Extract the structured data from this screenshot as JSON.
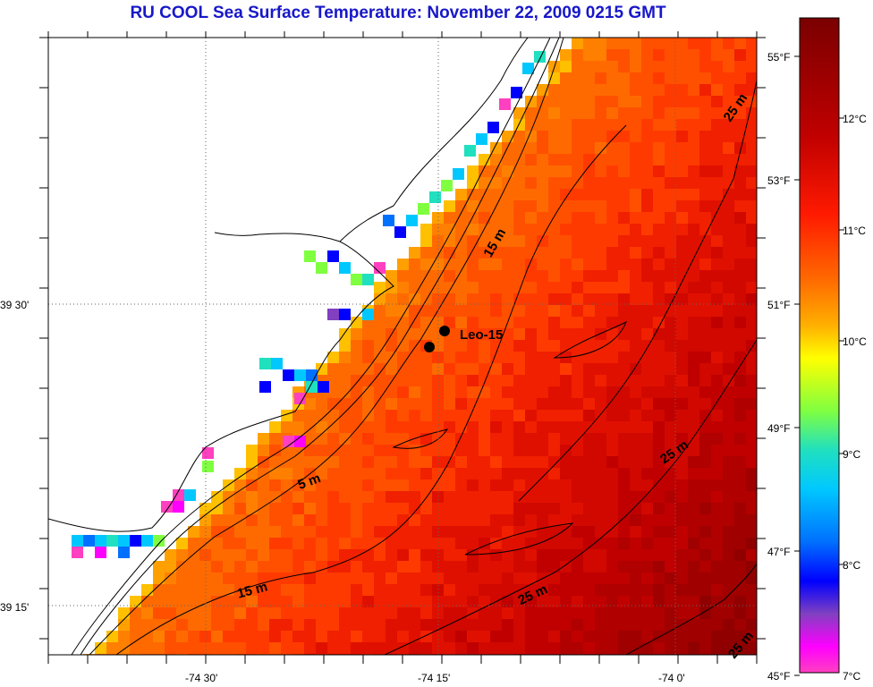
{
  "title": "RU COOL  Sea Surface Temperature:  November 22, 2009 0215 GMT",
  "lat_labels": [
    {
      "text": "39 30'",
      "lat": 39.5
    },
    {
      "text": "39 15'",
      "lat": 39.25
    }
  ],
  "lon_labels": [
    {
      "text": "-74 30'",
      "lon": -74.5
    },
    {
      "text": "-74 15'",
      "lon": -74.25
    },
    {
      "text": "-74 0'",
      "lon": -74.0
    }
  ],
  "colorbar": {
    "fahrenheit_labels": [
      "55°F",
      "53°F",
      "51°F",
      "49°F",
      "47°F",
      "45°F"
    ],
    "celsius_labels": [
      "12°C",
      "11°C",
      "10°C",
      "9°C",
      "8°C",
      "7°C"
    ],
    "colors": [
      "#7a0000",
      "#c00000",
      "#ff1a00",
      "#ff6a00",
      "#ffb000",
      "#ffff00",
      "#80ff40",
      "#20e0c0",
      "#00c8ff",
      "#0070ff",
      "#0000ff",
      "#8040c0",
      "#ff00ff",
      "#ff40c0"
    ]
  },
  "station": {
    "name": "Leo-15"
  },
  "contour_labels": [
    {
      "text": "25 m"
    },
    {
      "text": "15 m"
    },
    {
      "text": "5 m"
    },
    {
      "text": "15 m"
    },
    {
      "text": "25 m"
    },
    {
      "text": "25 m"
    },
    {
      "text": "25 m"
    }
  ]
}
